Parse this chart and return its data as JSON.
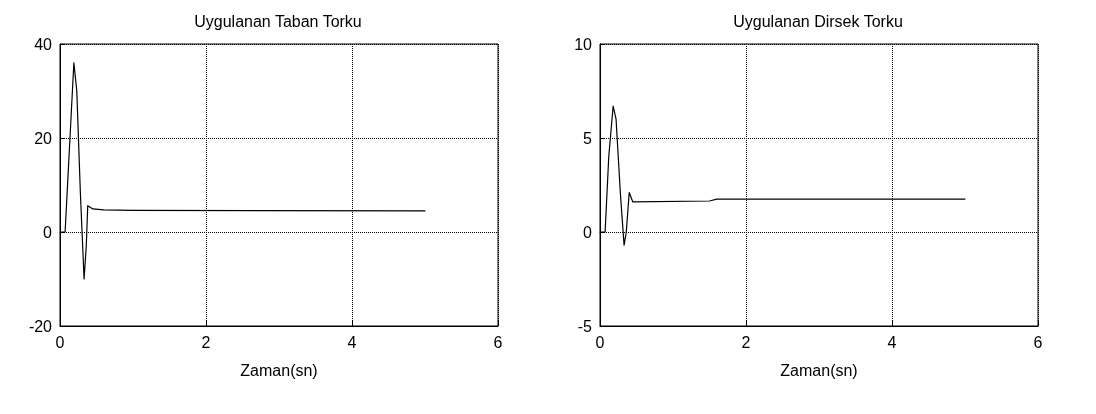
{
  "chart_data": [
    {
      "type": "line",
      "title": "Uygulanan Taban Torku",
      "xlabel": "Zaman(sn)",
      "x": [
        0,
        0.07,
        0.12,
        0.19,
        0.23,
        0.28,
        0.33,
        0.36,
        0.38,
        0.45,
        0.6,
        1,
        5
      ],
      "series": [
        {
          "color": "#000000",
          "values": [
            0,
            0,
            15,
            36,
            30,
            8,
            -10,
            -3,
            5.6,
            4.9,
            4.7,
            4.6,
            4.5
          ]
        }
      ],
      "xlim": [
        0,
        6
      ],
      "xticks": [
        0,
        2,
        4,
        6
      ],
      "ylim": [
        -20,
        40
      ],
      "yticks": [
        -20,
        0,
        20,
        40
      ],
      "grid": true,
      "marker": "none",
      "line_style": "solid"
    },
    {
      "type": "line",
      "title": "Uygulanan Dirsek Torku",
      "xlabel": "Zaman(sn)",
      "x": [
        0,
        0.07,
        0.12,
        0.18,
        0.22,
        0.28,
        0.33,
        0.36,
        0.4,
        0.45,
        1.5,
        1.6,
        5
      ],
      "series": [
        {
          "color": "#000000",
          "values": [
            0,
            0,
            4,
            6.7,
            6,
            2,
            -0.7,
            0,
            2.1,
            1.6,
            1.65,
            1.75,
            1.75
          ]
        }
      ],
      "xlim": [
        0,
        6
      ],
      "xticks": [
        0,
        2,
        4,
        6
      ],
      "ylim": [
        -5,
        10
      ],
      "yticks": [
        -5,
        0,
        5,
        10
      ],
      "grid": true,
      "marker": "none",
      "line_style": "solid"
    }
  ]
}
